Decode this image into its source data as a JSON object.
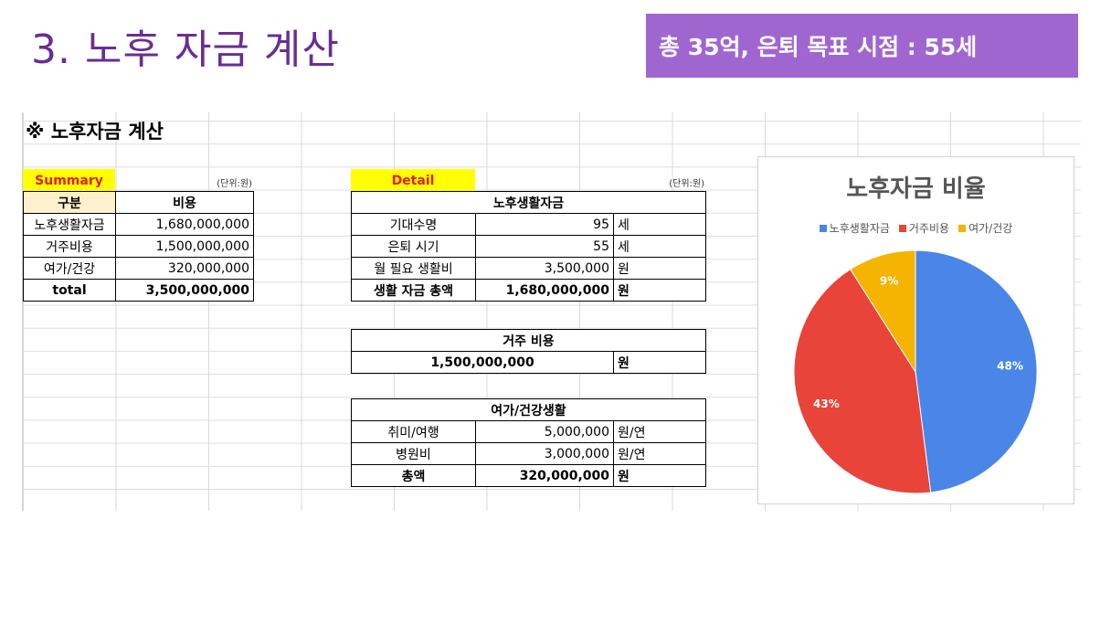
{
  "header": {
    "title": "3. 노후 자금 계산",
    "badge": "총 35억, 은퇴 목표 시점 : 55세"
  },
  "sheet": {
    "title": "※ 노후자금 계산"
  },
  "summary": {
    "label": "Summary",
    "unit": "(단위:원)",
    "headers": [
      "구분",
      "비용"
    ],
    "rows": [
      {
        "name": "노후생활자금",
        "value": "1,680,000,000"
      },
      {
        "name": "거주비용",
        "value": "1,500,000,000"
      },
      {
        "name": "여가/건강",
        "value": "320,000,000"
      },
      {
        "name": "total",
        "value": "3,500,000,000"
      }
    ]
  },
  "detail": {
    "label": "Detail",
    "unit": "(단위:원)",
    "living": {
      "header": "노후생활자금",
      "rows": [
        {
          "name": "기대수명",
          "value": "95",
          "unit": "세"
        },
        {
          "name": "은퇴 시기",
          "value": "55",
          "unit": "세"
        },
        {
          "name": "월 필요 생활비",
          "value": "3,500,000",
          "unit": "원"
        },
        {
          "name": "생활 자금 총액",
          "value": "1,680,000,000",
          "unit": "원"
        }
      ]
    },
    "housing": {
      "header": "거주 비용",
      "value": "1,500,000,000",
      "unit": "원"
    },
    "leisure": {
      "header": "여가/건강생활",
      "rows": [
        {
          "name": "취미/여행",
          "value": "5,000,000",
          "unit": "원/연"
        },
        {
          "name": "병원비",
          "value": "3,000,000",
          "unit": "원/연"
        },
        {
          "name": "총액",
          "value": "320,000,000",
          "unit": "원"
        }
      ]
    }
  },
  "chart_data": {
    "type": "pie",
    "title": "노후자금 비율",
    "categories": [
      "노후생활자금",
      "거주비용",
      "여가/건강"
    ],
    "values": [
      48,
      43,
      9
    ],
    "labels": [
      "48%",
      "43%",
      "9%"
    ],
    "colors": [
      "#4a86e8",
      "#e8443a",
      "#f4b400"
    ],
    "legend": "top"
  }
}
